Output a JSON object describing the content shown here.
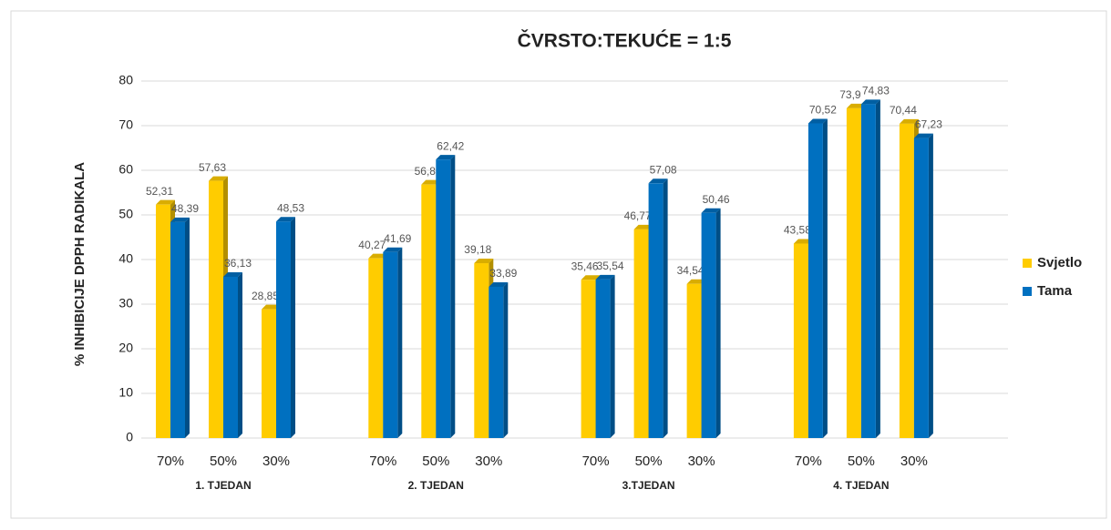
{
  "chart_data": {
    "type": "bar",
    "title": "ČVRSTO:TEKUĆE = 1:5",
    "y_label": "% INHIBICIJE DPPH RADIKALA",
    "categories": [
      "70%",
      "50%",
      "30%",
      "70%",
      "50%",
      "30%",
      "70%",
      "50%",
      "30%",
      "70%",
      "50%",
      "30%"
    ],
    "category_groups": [
      "1. TJEDAN",
      "2. TJEDAN",
      "3.TJEDAN",
      "4. TJEDAN"
    ],
    "series": [
      {
        "name": "Svjetlo",
        "color": "#ffcc00",
        "values": [
          52.31,
          57.63,
          28.85,
          40.27,
          56.8,
          39.18,
          35.46,
          46.77,
          34.54,
          43.58,
          73.9,
          70.44
        ],
        "value_labels": [
          "52,31",
          "57,63",
          "28,85",
          "40,27",
          "56,8",
          "39,18",
          "35,46",
          "46,77",
          "34,54",
          "43,58",
          "73,9",
          "70,44"
        ]
      },
      {
        "name": "Tama",
        "color": "#0070c0",
        "values": [
          48.39,
          36.13,
          48.53,
          41.69,
          62.42,
          33.89,
          35.54,
          57.08,
          50.46,
          70.52,
          74.83,
          67.23
        ],
        "value_labels": [
          "48,39",
          "36,13",
          "48,53",
          "41,69",
          "62,42",
          "33,89",
          "35,54",
          "57,08",
          "50,46",
          "70,52",
          "74,83",
          "67,23"
        ]
      }
    ],
    "ylim": [
      0,
      80
    ],
    "yticks": [
      0,
      10,
      20,
      30,
      40,
      50,
      60,
      70,
      80
    ],
    "grid": true,
    "legend": "right"
  }
}
